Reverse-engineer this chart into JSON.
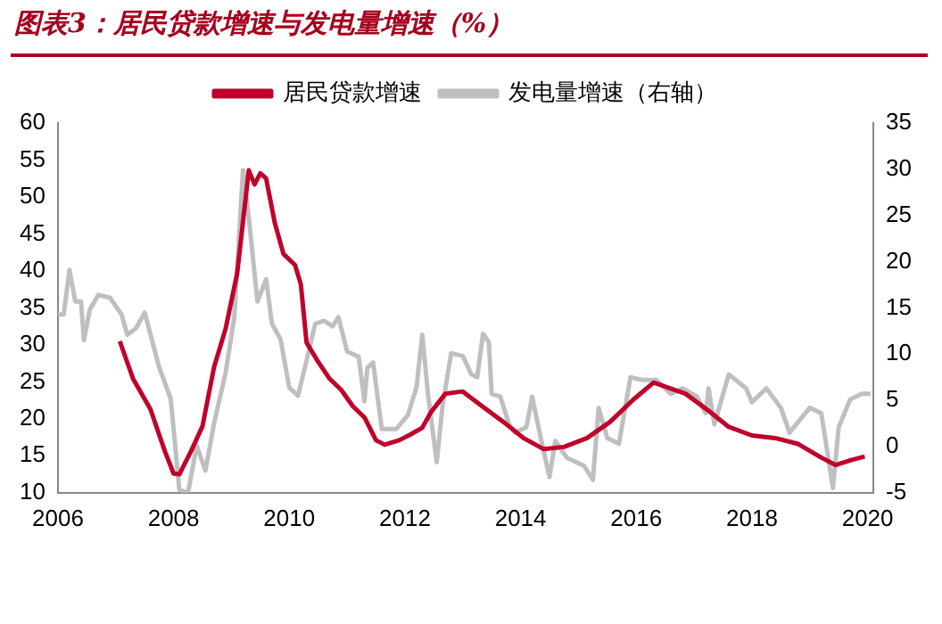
{
  "chart_data": {
    "type": "line",
    "title": "图表3：居民贷款增速与发电量增速（%）",
    "legend": "top",
    "xlim": [
      2006,
      2020.1
    ],
    "xticks": [
      2006,
      2008,
      2010,
      2012,
      2014,
      2016,
      2018,
      2020
    ],
    "ylim": [
      10,
      60
    ],
    "yticks": [
      10,
      15,
      20,
      25,
      30,
      35,
      40,
      45,
      50,
      55,
      60
    ],
    "y2lim": [
      -5,
      35
    ],
    "y2ticks": [
      -5,
      0,
      5,
      10,
      15,
      20,
      25,
      30,
      35
    ],
    "series": [
      {
        "name": "居民贷款增速",
        "color": "#c0002a",
        "x": [
          2007.07,
          2007.3,
          2007.6,
          2007.85,
          2008.0,
          2008.1,
          2008.3,
          2008.5,
          2008.7,
          2008.9,
          2009.1,
          2009.3,
          2009.4,
          2009.5,
          2009.6,
          2009.75,
          2009.9,
          2010.1,
          2010.2,
          2010.3,
          2010.5,
          2010.7,
          2010.9,
          2011.1,
          2011.3,
          2011.5,
          2011.65,
          2011.9,
          2012.1,
          2012.3,
          2012.45,
          2012.7,
          2013.0,
          2013.3,
          2013.7,
          2014.05,
          2014.4,
          2014.75,
          2015.15,
          2015.55,
          2015.95,
          2016.3,
          2016.85,
          2017.25,
          2017.6,
          2018.0,
          2018.4,
          2018.8,
          2019.2,
          2019.45,
          2019.7,
          2019.95
        ],
        "values": [
          30.5,
          25.4,
          21.3,
          15.6,
          12.6,
          12.5,
          15.6,
          19,
          27,
          32.2,
          39.7,
          53.6,
          51.7,
          53.2,
          52.5,
          46.5,
          42.3,
          40.8,
          38.2,
          30.3,
          27.7,
          25.4,
          23.9,
          21.7,
          20.2,
          17.1,
          16.5,
          17.1,
          17.9,
          18.8,
          20.9,
          23.4,
          23.7,
          21.9,
          19.6,
          17.4,
          15.9,
          16.2,
          17.4,
          19.6,
          22.6,
          24.9,
          23.4,
          21.1,
          18.9,
          17.75,
          17.4,
          16.6,
          14.75,
          13.75,
          14.4,
          14.9
        ]
      },
      {
        "name": "发电量增速（右轴）",
        "color": "#bfbfbf",
        "axis": "y2",
        "x": [
          2006.0,
          2006.1,
          2006.2,
          2006.3,
          2006.4,
          2006.45,
          2006.55,
          2006.7,
          2006.9,
          2007.1,
          2007.2,
          2007.35,
          2007.5,
          2007.75,
          2007.95,
          2008.1,
          2008.25,
          2008.4,
          2008.55,
          2008.7,
          2008.9,
          2009.05,
          2009.2,
          2009.3,
          2009.45,
          2009.6,
          2009.7,
          2009.85,
          2010.0,
          2010.15,
          2010.25,
          2010.45,
          2010.6,
          2010.75,
          2010.85,
          2011.0,
          2011.2,
          2011.3,
          2011.35,
          2011.45,
          2011.6,
          2011.85,
          2012.05,
          2012.2,
          2012.3,
          2012.4,
          2012.55,
          2012.65,
          2012.8,
          2013.0,
          2013.15,
          2013.25,
          2013.35,
          2013.45,
          2013.5,
          2013.65,
          2013.8,
          2013.9,
          2014.1,
          2014.2,
          2014.35,
          2014.5,
          2014.6,
          2014.8,
          2015.1,
          2015.25,
          2015.35,
          2015.5,
          2015.7,
          2015.9,
          2016.1,
          2016.35,
          2016.6,
          2016.8,
          2017.05,
          2017.2,
          2017.25,
          2017.35,
          2017.6,
          2017.9,
          2018.0,
          2018.25,
          2018.5,
          2018.65,
          2019.0,
          2019.2,
          2019.4,
          2019.5,
          2019.7,
          2019.9,
          2020.05
        ],
        "values": [
          14.3,
          14.3,
          19.1,
          15.7,
          15.7,
          11.5,
          14.8,
          16.4,
          16.1,
          14.3,
          12.1,
          12.8,
          14.5,
          8.6,
          5.2,
          -4.7,
          -5,
          0.1,
          -2.6,
          2.5,
          8,
          14,
          29.9,
          24.8,
          15.7,
          18.1,
          13.3,
          11.6,
          6.4,
          5.5,
          8,
          13.3,
          13.6,
          13,
          14,
          10.3,
          9.7,
          4.9,
          8.5,
          9.1,
          1.9,
          1.9,
          3.4,
          6.4,
          12.1,
          5.6,
          -1.7,
          4.4,
          10.1,
          9.8,
          7.8,
          7.5,
          12.2,
          11.3,
          5.7,
          5.4,
          2.4,
          1.5,
          2.1,
          5.4,
          0.9,
          -3.3,
          0.6,
          -1.2,
          -2.1,
          -3.6,
          4.2,
          0.9,
          0.3,
          7.5,
          7.2,
          7.2,
          5.7,
          6.3,
          5.4,
          3.6,
          6.3,
          2.4,
          7.8,
          6.3,
          4.8,
          6.3,
          4.2,
          1.5,
          4.2,
          3.6,
          -4.5,
          2.1,
          5.1,
          5.7,
          5.7
        ]
      }
    ]
  }
}
